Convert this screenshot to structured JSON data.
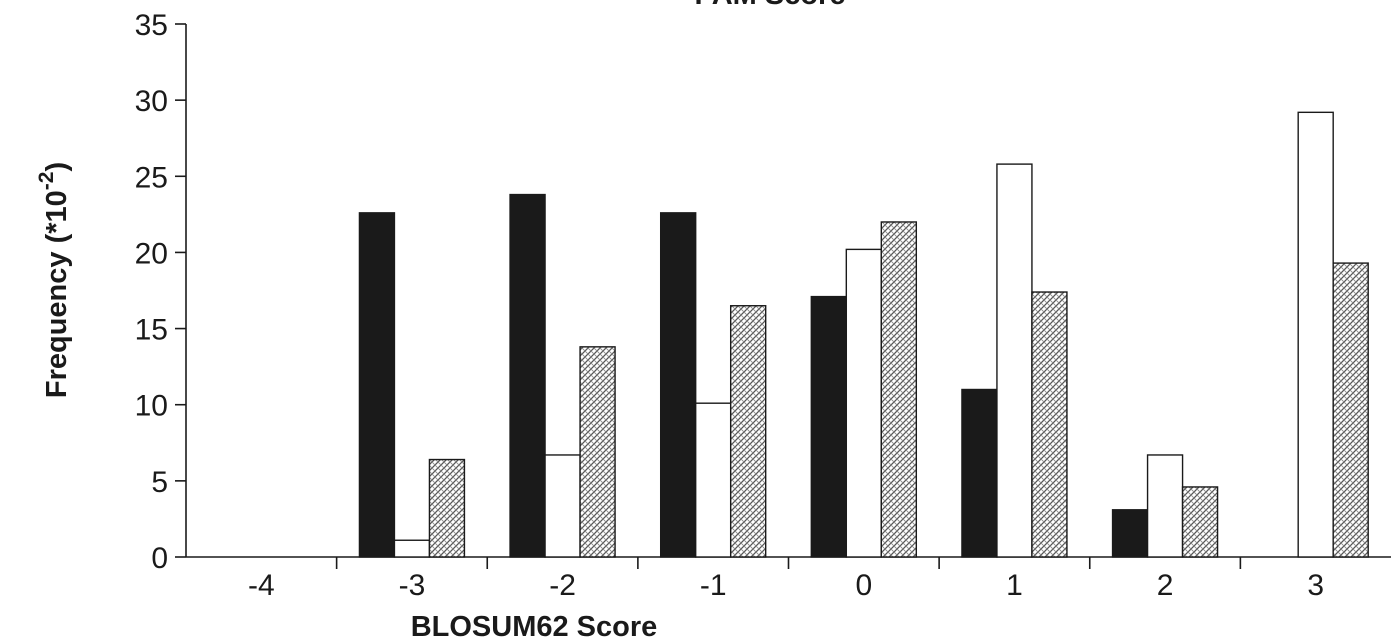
{
  "chart_data": {
    "type": "bar",
    "title": "PAM Score",
    "xlabel": "BLOSUM62 Score",
    "ylabel_prefix": "Frequency (*10",
    "ylabel_exponent": "-2",
    "ylabel_suffix": ")",
    "categories": [
      "-4",
      "-3",
      "-2",
      "-1",
      "0",
      "1",
      "2",
      "3"
    ],
    "ylim": [
      0,
      35
    ],
    "yticks": [
      "0",
      "5",
      "10",
      "15",
      "20",
      "25",
      "30",
      "35"
    ],
    "grid": false,
    "legend": "none",
    "series": [
      {
        "fill": "#1a1a1a",
        "values": [
          0,
          22.6,
          23.8,
          22.6,
          17.1,
          11.0,
          3.1,
          0
        ]
      },
      {
        "fill": "#ffffff",
        "values": [
          0,
          1.1,
          6.7,
          10.1,
          20.2,
          25.8,
          6.7,
          29.2
        ]
      },
      {
        "fill": "pattern",
        "values": [
          0,
          6.4,
          13.8,
          16.5,
          22.0,
          17.4,
          4.6,
          19.3
        ]
      }
    ]
  }
}
